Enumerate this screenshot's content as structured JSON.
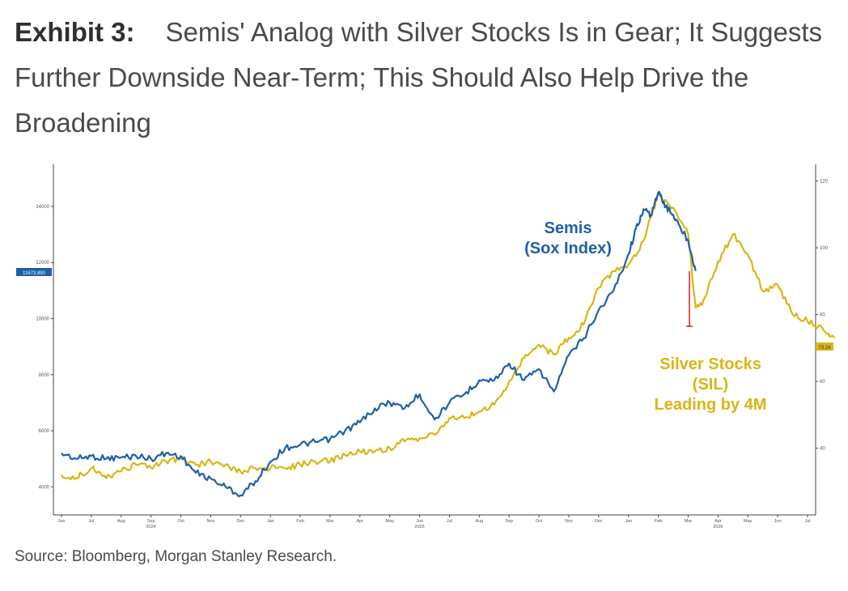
{
  "exhibit": {
    "label": "Exhibit 3:",
    "title": "Semis' Analog with Silver Stocks Is in Gear; It Suggests Further Downside Near-Term; This Should Also Help Drive the Broadening"
  },
  "source": "Source: Bloomberg, Morgan Stanley Research.",
  "colors": {
    "semis": "#1f5fa8",
    "silver": "#d9b514",
    "red_marker": "#e02020"
  },
  "chart_data": {
    "type": "line",
    "title": "",
    "x_tick_labels": [
      "Jun",
      "Jul",
      "Aug",
      "Sep",
      "Oct",
      "Nov",
      "Dec",
      "Jan",
      "Feb",
      "Mar",
      "Apr",
      "May",
      "Jun",
      "Jul",
      "Aug",
      "Sep",
      "Oct",
      "Nov",
      "Dec",
      "Jan",
      "Feb",
      "Mar",
      "Apr",
      "May",
      "Jun",
      "Jul"
    ],
    "x_year_labels": [
      {
        "after_tick": "Sep",
        "index": 3,
        "text": "2024"
      },
      {
        "after_tick": "Jun",
        "index": 12,
        "text": "2025"
      },
      {
        "after_tick": "Apr",
        "index": 22,
        "text": "2026"
      }
    ],
    "y_left": {
      "min": 3000,
      "max": 15500,
      "ticks": [
        4000,
        6000,
        8000,
        10000,
        12000,
        14000
      ],
      "last_value_label": "11673.890"
    },
    "y_right": {
      "min": 20,
      "max": 125,
      "ticks": [
        40,
        60,
        80,
        100,
        120
      ],
      "last_value_label": "73.24"
    },
    "series": [
      {
        "name": "Semis (Sox Index)",
        "axis": "left",
        "color": "#1f5fa8",
        "x": [
          0,
          0.5,
          1,
          1.5,
          2,
          2.5,
          3,
          3.5,
          4,
          4.5,
          5,
          5.5,
          6,
          6.5,
          7,
          7.5,
          8,
          8.5,
          9,
          9.5,
          10,
          10.5,
          11,
          11.5,
          12,
          12.5,
          13,
          13.5,
          14,
          14.5,
          15,
          15.5,
          16,
          16.5,
          17,
          17.5,
          18,
          18.5,
          19,
          19.25,
          19.5,
          19.75,
          20,
          20.25,
          20.5,
          20.75,
          21,
          21.25
        ],
        "y": [
          5200,
          5000,
          5100,
          5000,
          5050,
          5100,
          5000,
          5200,
          5100,
          4500,
          4300,
          4000,
          3700,
          4200,
          4900,
          5400,
          5500,
          5600,
          5700,
          6000,
          6300,
          6800,
          7000,
          6800,
          7300,
          6400,
          7000,
          7300,
          7800,
          7800,
          8400,
          7800,
          8200,
          7400,
          8700,
          9300,
          10300,
          11000,
          12300,
          13200,
          13900,
          13700,
          14500,
          14000,
          13700,
          13200,
          12800,
          11700
        ]
      },
      {
        "name": "Silver Stocks (SIL) Leading by 4M",
        "axis": "right",
        "color": "#d9b514",
        "x": [
          0,
          0.5,
          1,
          1.5,
          2,
          2.5,
          3,
          3.5,
          4,
          4.5,
          5,
          5.5,
          6,
          6.5,
          7,
          7.5,
          8,
          8.5,
          9,
          9.5,
          10,
          10.5,
          11,
          11.5,
          12,
          12.5,
          13,
          13.5,
          14,
          14.5,
          15,
          15.5,
          16,
          16.5,
          17,
          17.5,
          18,
          18.5,
          19,
          19.5,
          20,
          20.5,
          21,
          21.25,
          21.5,
          22,
          22.5,
          23,
          23.5,
          24,
          24.5,
          25,
          25.5,
          25.9
        ],
        "y": [
          32,
          31,
          34,
          31,
          33,
          35,
          34,
          36,
          37,
          35,
          36,
          35,
          33,
          34,
          34,
          34,
          35,
          36,
          36,
          38,
          39,
          39,
          40,
          42,
          43,
          44,
          49,
          49,
          51,
          53,
          60,
          67,
          71,
          68,
          73,
          77,
          88,
          93,
          95,
          102,
          116,
          112,
          104,
          82,
          84,
          96,
          104,
          98,
          87,
          89,
          80,
          78,
          76,
          73
        ]
      }
    ],
    "annotations": [
      {
        "text": "Semis",
        "text2": "(Sox Index)",
        "color": "#1f5fa8"
      },
      {
        "text": "Silver Stocks",
        "text2": "(SIL)",
        "text3": "Leading by 4M",
        "color": "#d9b514"
      }
    ],
    "grid": false,
    "legend": "none"
  }
}
